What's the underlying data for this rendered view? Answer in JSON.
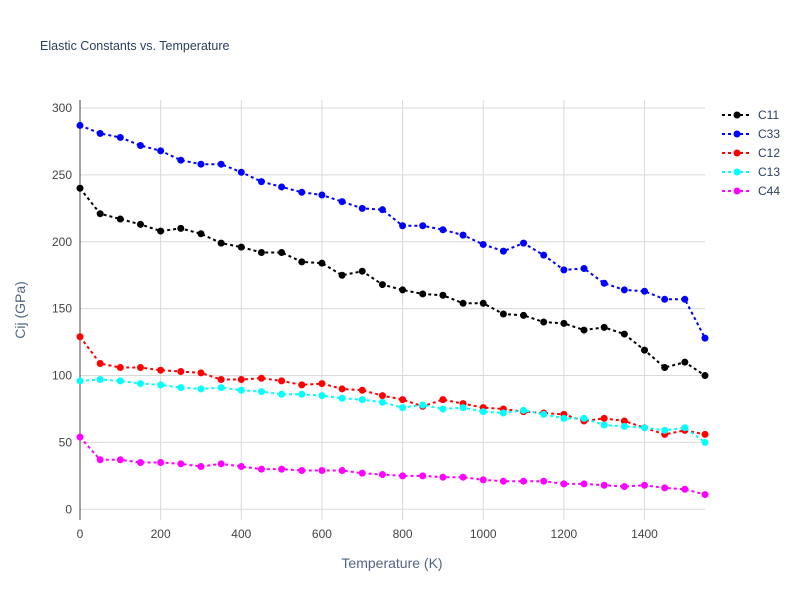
{
  "chart_data": {
    "type": "line",
    "title": "Elastic Constants vs. Temperature",
    "xlabel": "Temperature (K)",
    "ylabel": "Cij (GPa)",
    "xlim": [
      0,
      1550
    ],
    "ylim": [
      -8,
      306
    ],
    "xticks": [
      0,
      200,
      400,
      600,
      800,
      1000,
      1200,
      1400
    ],
    "yticks": [
      0,
      50,
      100,
      150,
      200,
      250,
      300
    ],
    "grid": true,
    "legend_position": "top-right",
    "x": [
      0,
      50,
      100,
      150,
      200,
      250,
      300,
      350,
      400,
      450,
      500,
      550,
      600,
      650,
      700,
      750,
      800,
      850,
      900,
      950,
      1000,
      1050,
      1100,
      1150,
      1200,
      1250,
      1300,
      1350,
      1400,
      1450,
      1500,
      1550
    ],
    "series": [
      {
        "name": "C11",
        "color": "#000000",
        "values": [
          240,
          221,
          217,
          213,
          208,
          210,
          206,
          199,
          196,
          192,
          192,
          185,
          184,
          175,
          178,
          168,
          164,
          161,
          160,
          154,
          154,
          146,
          145,
          140,
          139,
          134,
          136,
          131,
          119,
          106,
          110,
          100
        ]
      },
      {
        "name": "C33",
        "color": "#0000ff",
        "values": [
          287,
          281,
          278,
          272,
          268,
          261,
          258,
          258,
          252,
          245,
          241,
          237,
          235,
          230,
          225,
          224,
          212,
          212,
          209,
          205,
          198,
          193,
          199,
          190,
          179,
          180,
          169,
          164,
          163,
          157,
          157,
          128
        ]
      },
      {
        "name": "C12",
        "color": "#ff0000",
        "values": [
          129,
          109,
          106,
          106,
          104,
          103,
          102,
          97,
          97,
          98,
          96,
          93,
          94,
          90,
          89,
          85,
          82,
          77,
          82,
          79,
          76,
          75,
          73,
          72,
          71,
          66,
          68,
          66,
          61,
          56,
          59,
          56
        ]
      },
      {
        "name": "C13",
        "color": "#00ffff",
        "values": [
          96,
          97,
          96,
          94,
          93,
          91,
          90,
          91,
          89,
          88,
          86,
          86,
          85,
          83,
          82,
          80,
          76,
          78,
          75,
          76,
          73,
          72,
          74,
          71,
          68,
          68,
          63,
          62,
          61,
          59,
          61,
          50
        ]
      },
      {
        "name": "C44",
        "color": "#ff00ff",
        "values": [
          54,
          37,
          37,
          35,
          35,
          34,
          32,
          34,
          32,
          30,
          30,
          29,
          29,
          29,
          27,
          26,
          25,
          25,
          24,
          24,
          22,
          21,
          21,
          21,
          19,
          19,
          18,
          17,
          18,
          16,
          15,
          11
        ]
      }
    ]
  }
}
